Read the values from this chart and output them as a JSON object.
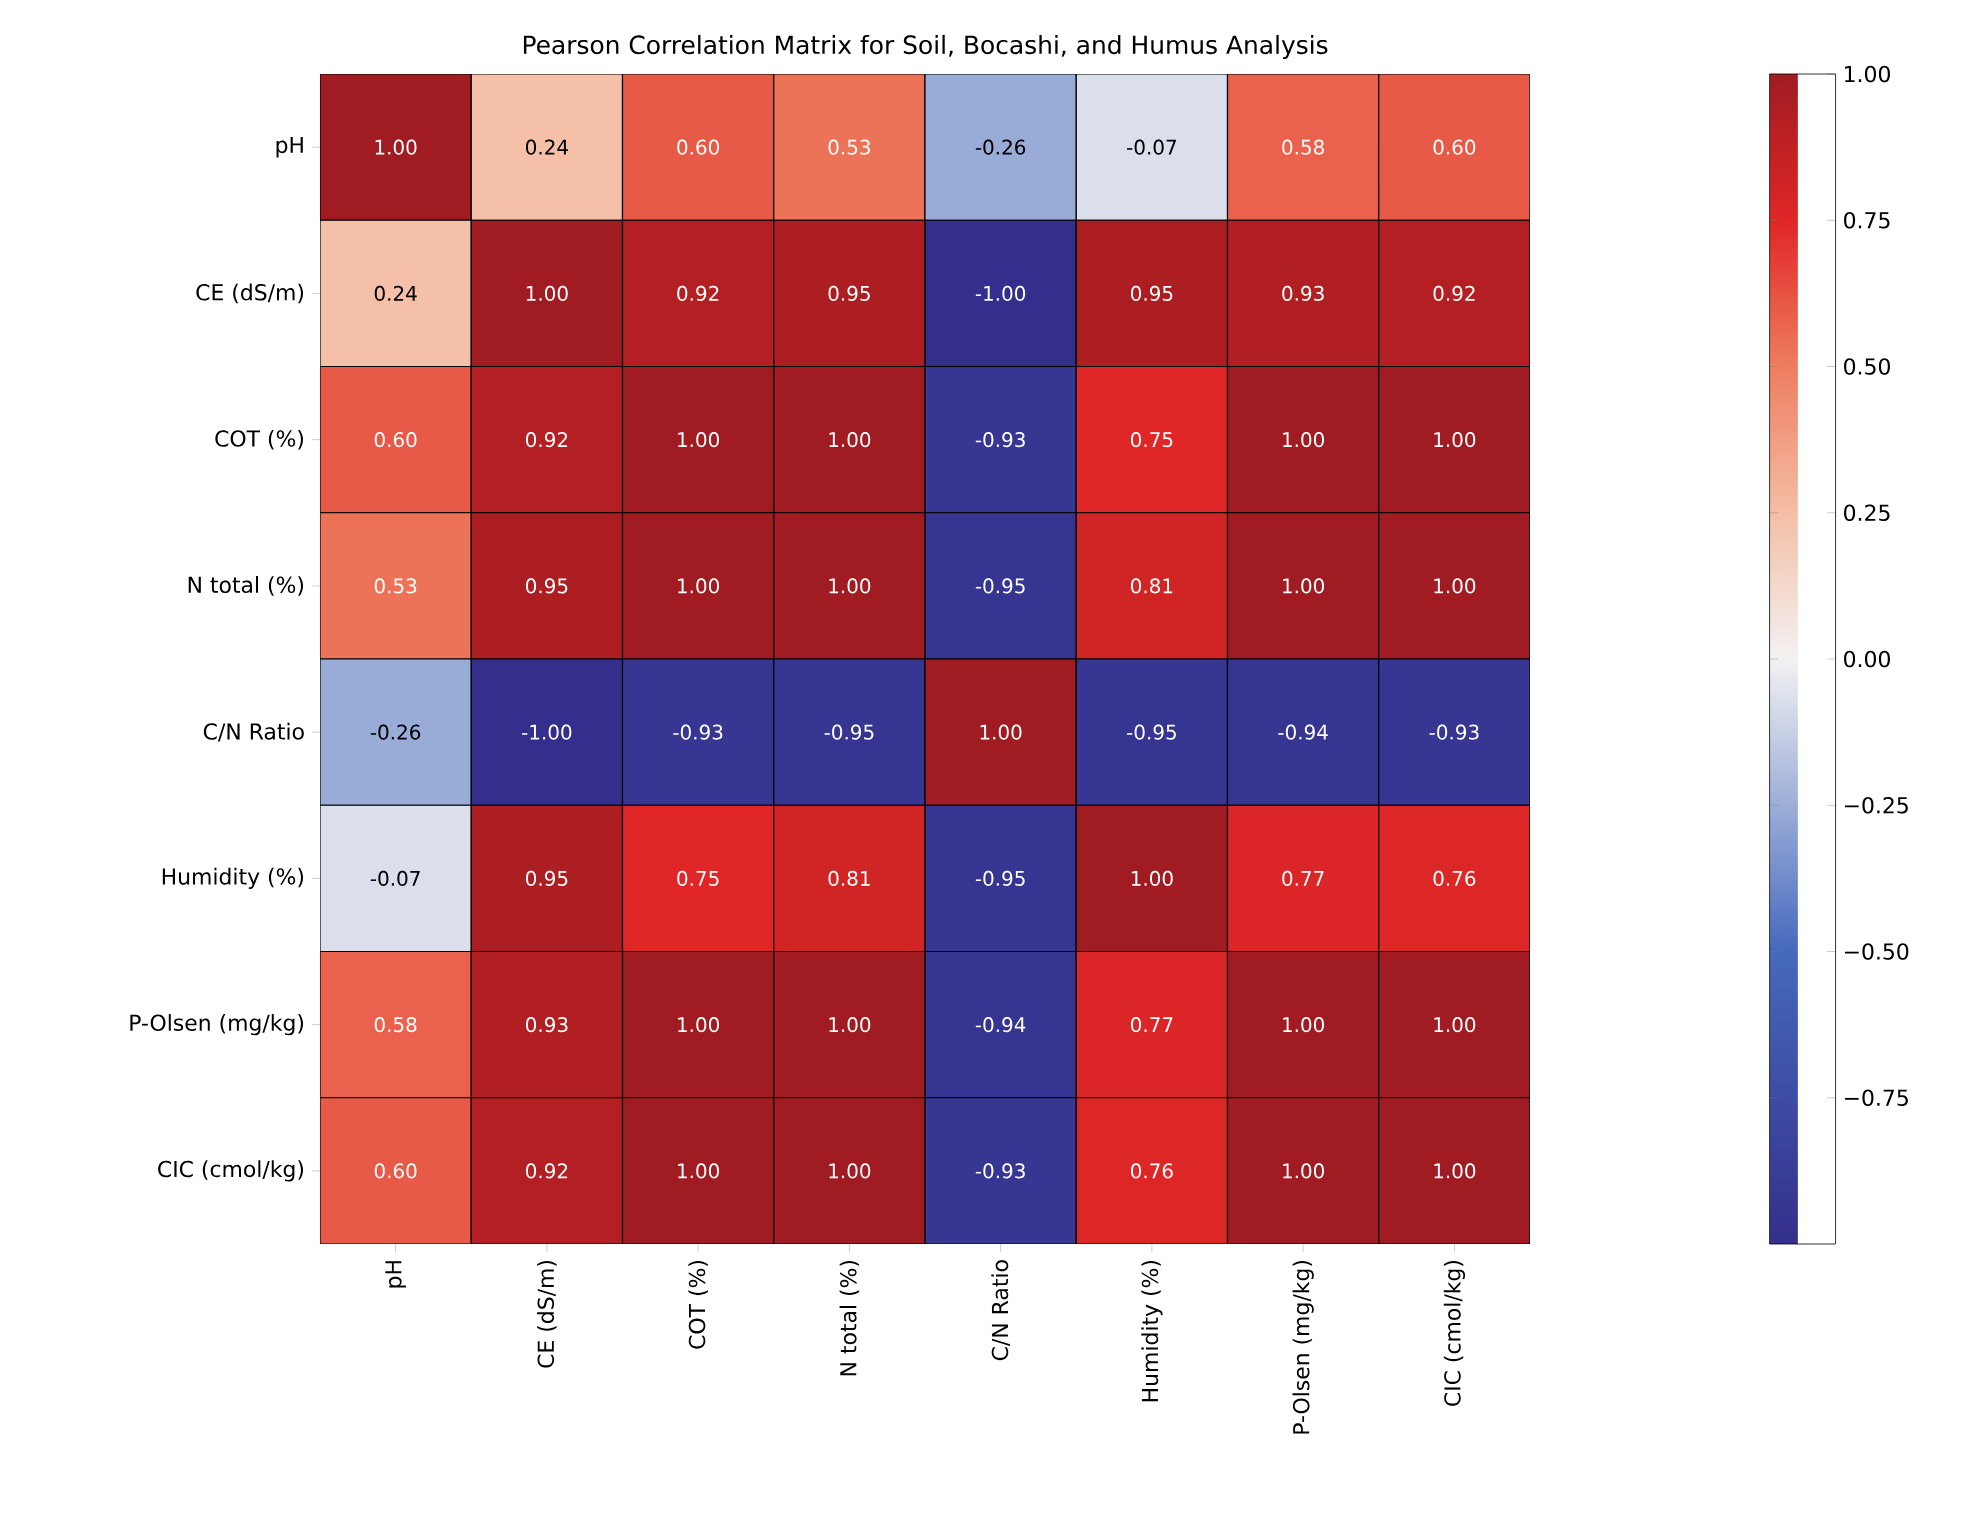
{
  "chart_data": {
    "type": "heatmap",
    "title": "Pearson Correlation Matrix for Soil, Bocashi, and Humus Analysis",
    "categories": [
      "pH",
      "CE (dS/m)",
      "COT (%)",
      "N total (%)",
      "C/N Ratio",
      "Humidity (%)",
      "P-Olsen (mg/kg)",
      "CIC (cmol/kg)"
    ],
    "y_categories": [
      "pH",
      "CE (dS/m)",
      "COT (%)",
      "N total (%)",
      "C/N Ratio",
      "Humidity (%)",
      "P-Olsen (mg/kg)",
      "CIC (cmol/kg)"
    ],
    "cells": [
      [
        1.0,
        0.24,
        0.6,
        0.53,
        -0.26,
        -0.07,
        0.58,
        0.6
      ],
      [
        0.24,
        1.0,
        0.92,
        0.95,
        -1.0,
        0.95,
        0.93,
        0.92
      ],
      [
        0.6,
        0.92,
        1.0,
        1.0,
        -0.93,
        0.75,
        1.0,
        1.0
      ],
      [
        0.53,
        0.95,
        1.0,
        1.0,
        -0.95,
        0.81,
        1.0,
        1.0
      ],
      [
        -0.26,
        -1.0,
        -0.93,
        -0.95,
        1.0,
        -0.95,
        -0.94,
        -0.93
      ],
      [
        -0.07,
        0.95,
        0.75,
        0.81,
        -0.95,
        1.0,
        0.77,
        0.76
      ],
      [
        0.58,
        0.93,
        1.0,
        1.0,
        -0.94,
        0.77,
        1.0,
        1.0
      ],
      [
        0.6,
        0.92,
        1.0,
        1.0,
        -0.93,
        0.76,
        1.0,
        1.0
      ]
    ],
    "cell_labels": [
      [
        "1.00",
        "0.24",
        "0.60",
        "0.53",
        "-0.26",
        "-0.07",
        "0.58",
        "0.60"
      ],
      [
        "0.24",
        "1.00",
        "0.92",
        "0.95",
        "-1.00",
        "0.95",
        "0.93",
        "0.92"
      ],
      [
        "0.60",
        "0.92",
        "1.00",
        "1.00",
        "-0.93",
        "0.75",
        "1.00",
        "1.00"
      ],
      [
        "0.53",
        "0.95",
        "1.00",
        "1.00",
        "-0.95",
        "0.81",
        "1.00",
        "1.00"
      ],
      [
        "-0.26",
        "-1.00",
        "-0.93",
        "-0.95",
        "1.00",
        "-0.95",
        "-0.94",
        "-0.93"
      ],
      [
        "-0.07",
        "0.95",
        "0.75",
        "0.81",
        "-0.95",
        "1.00",
        "0.77",
        "0.76"
      ],
      [
        "0.58",
        "0.93",
        "1.00",
        "1.00",
        "-0.94",
        "0.77",
        "1.00",
        "1.00"
      ],
      [
        "0.60",
        "0.92",
        "1.00",
        "1.00",
        "-0.93",
        "0.76",
        "1.00",
        "1.00"
      ]
    ],
    "clim": [
      -1,
      1
    ],
    "cticks": [
      {
        "value": -0.75,
        "label": "−0.75"
      },
      {
        "value": -0.5,
        "label": "−0.50"
      },
      {
        "value": -0.25,
        "label": "−0.25"
      },
      {
        "value": 0,
        "label": "0.00"
      },
      {
        "value": 0.25,
        "label": "0.25"
      },
      {
        "value": 0.5,
        "label": "0.50"
      },
      {
        "value": 0.75,
        "label": "0.75"
      },
      {
        "value": 1,
        "label": "1.00"
      }
    ]
  }
}
